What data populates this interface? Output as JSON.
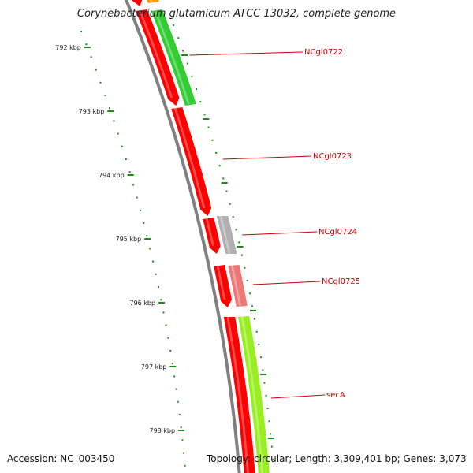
{
  "title": "Corynebacterium glutamicum ATCC 13032, complete genome",
  "accession_text": "Accession: NC_003450",
  "stats_text": "Topology: circular; Length: 3,309,401 bp; Genes: 3,073",
  "colors": {
    "backbone": "#808080",
    "tick": "#1a8a1a",
    "label": "#cc0000",
    "cds_forward_strand": "#ff0000",
    "cds_reverse_strand": "#33cc33",
    "gene_gray": "#b0b0b0",
    "gene_pink": "#ee7777",
    "gene_lime": "#99ee22",
    "gene_orange": "#ff9900"
  },
  "scale": {
    "unit": "kbp",
    "ticks": [
      {
        "label": "792 kbp"
      },
      {
        "label": "793 kbp"
      },
      {
        "label": "794 kbp"
      },
      {
        "label": "795 kbp"
      },
      {
        "label": "796 kbp"
      },
      {
        "label": "797 kbp"
      },
      {
        "label": "798 kbp"
      }
    ]
  },
  "gene_labels": [
    {
      "name": "NCgl0722"
    },
    {
      "name": "NCgl0723"
    },
    {
      "name": "NCgl0724"
    },
    {
      "name": "NCgl0725"
    },
    {
      "name": "secA"
    }
  ]
}
